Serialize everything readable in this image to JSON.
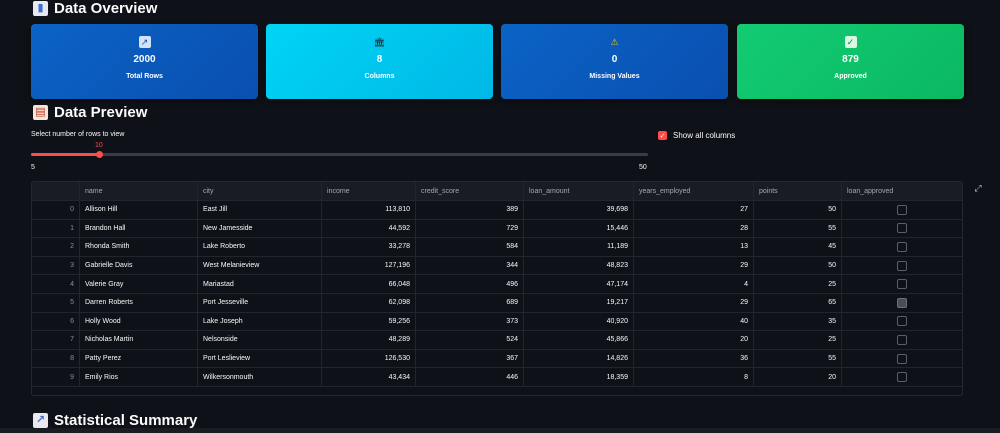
{
  "overview": {
    "title": "Data Overview",
    "cards": [
      {
        "icon": "chart-increasing-icon",
        "value": "2000",
        "label": "Total Rows",
        "color": "#0b63c6"
      },
      {
        "icon": "bank-icon",
        "value": "8",
        "label": "Columns",
        "color": "#00c8f0"
      },
      {
        "icon": "warning-icon",
        "value": "0",
        "label": "Missing Values",
        "color": "#0b63c6"
      },
      {
        "icon": "check-icon",
        "value": "879",
        "label": "Approved",
        "color": "#10c46c"
      }
    ]
  },
  "preview": {
    "title": "Data Preview",
    "slider": {
      "label": "Select number of rows to view",
      "value": "10",
      "min": "5",
      "max": "50",
      "fraction": 0.111
    },
    "show_all_columns": {
      "label": "Show all columns",
      "checked": true
    }
  },
  "table": {
    "columns": [
      "",
      "name",
      "city",
      "income",
      "credit_score",
      "loan_amount",
      "years_employed",
      "points",
      "loan_approved"
    ],
    "rows": [
      [
        "0",
        "Allison Hill",
        "East Jill",
        "113,810",
        "389",
        "39,698",
        "27",
        "50",
        false
      ],
      [
        "1",
        "Brandon Hall",
        "New Jamesside",
        "44,592",
        "729",
        "15,446",
        "28",
        "55",
        false
      ],
      [
        "2",
        "Rhonda Smith",
        "Lake Roberto",
        "33,278",
        "584",
        "11,189",
        "13",
        "45",
        false
      ],
      [
        "3",
        "Gabrielle Davis",
        "West Melanieview",
        "127,196",
        "344",
        "48,823",
        "29",
        "50",
        false
      ],
      [
        "4",
        "Valerie Gray",
        "Mariastad",
        "66,048",
        "496",
        "47,174",
        "4",
        "25",
        false
      ],
      [
        "5",
        "Darren Roberts",
        "Port Jesseville",
        "62,098",
        "689",
        "19,217",
        "29",
        "65",
        true
      ],
      [
        "6",
        "Holly Wood",
        "Lake Joseph",
        "59,256",
        "373",
        "40,920",
        "40",
        "35",
        false
      ],
      [
        "7",
        "Nicholas Martin",
        "Nelsonside",
        "48,289",
        "524",
        "45,866",
        "20",
        "25",
        false
      ],
      [
        "8",
        "Patty Perez",
        "Port Leslieview",
        "126,530",
        "367",
        "14,826",
        "36",
        "55",
        false
      ],
      [
        "9",
        "Emily Rios",
        "Wilkersonmouth",
        "43,434",
        "446",
        "18,359",
        "8",
        "20",
        false
      ]
    ]
  },
  "summary": {
    "title": "Statistical Summary"
  }
}
